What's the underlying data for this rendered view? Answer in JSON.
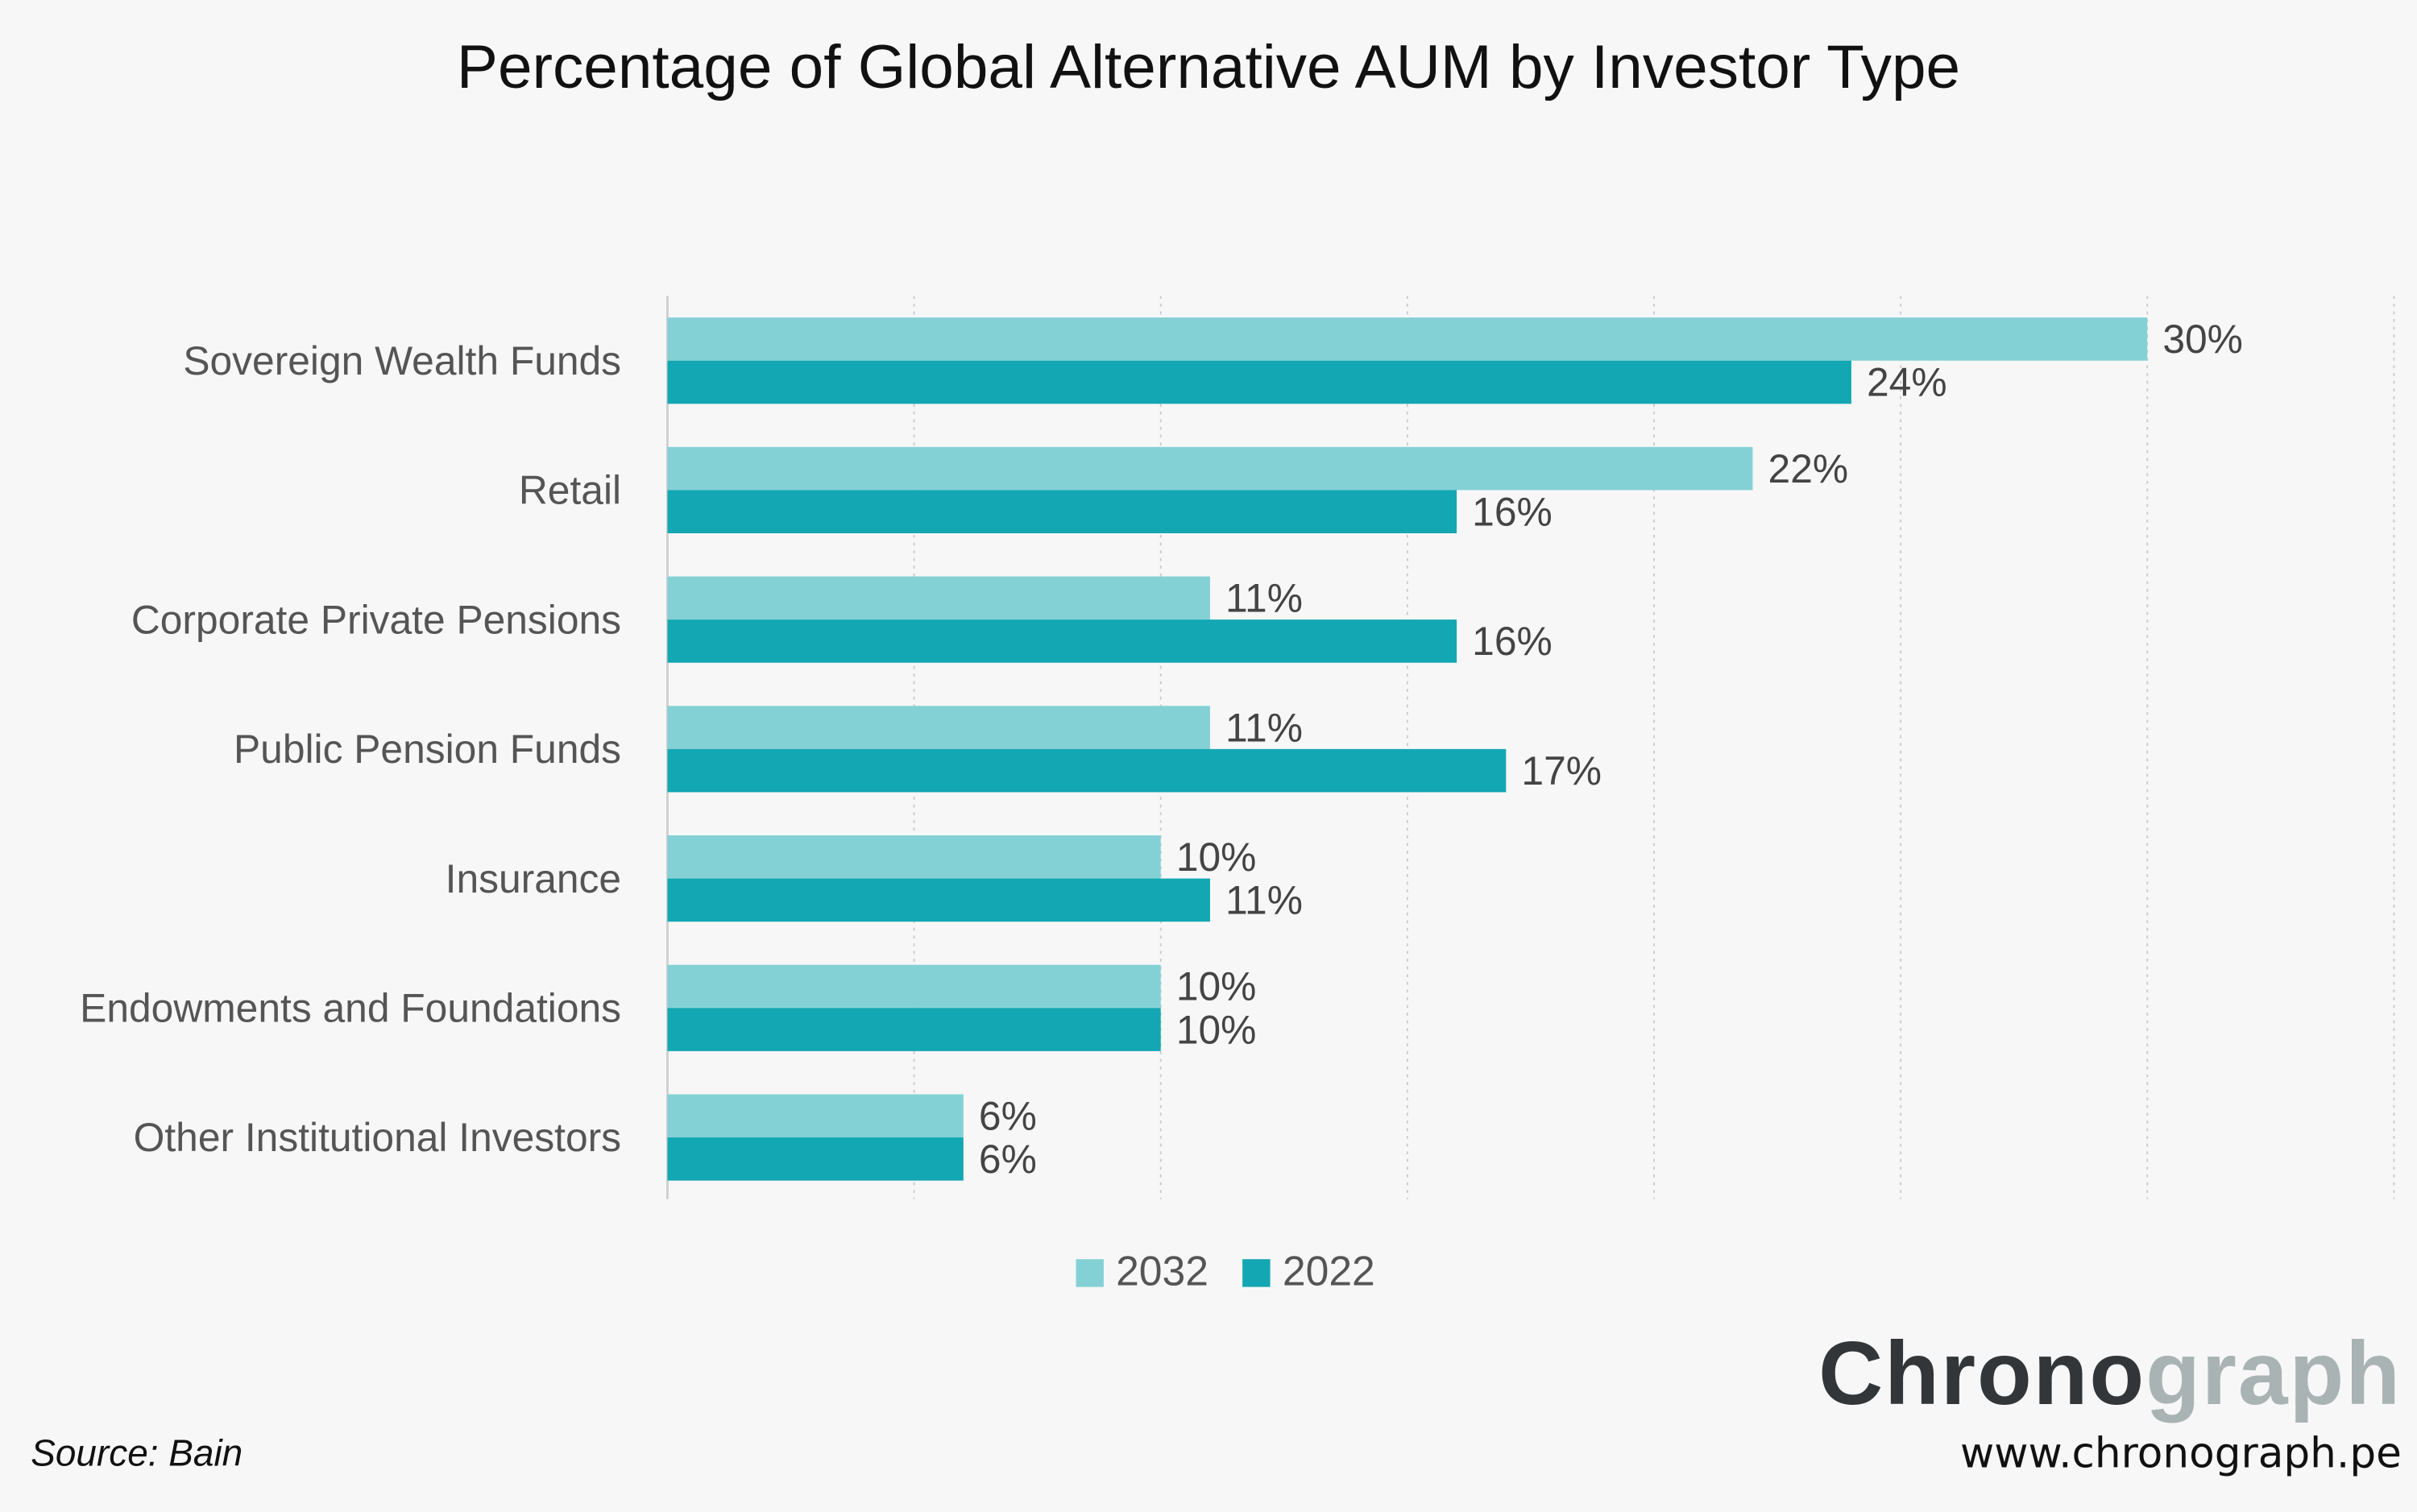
{
  "chart_data": {
    "type": "bar",
    "orientation": "horizontal",
    "title": "Percentage of Global Alternative AUM by Investor Type",
    "categories": [
      "Sovereign Wealth Funds",
      "Retail",
      "Corporate Private Pensions",
      "Public Pension Funds",
      "Insurance",
      "Endowments and Foundations",
      "Other Institutional Investors"
    ],
    "series": [
      {
        "name": "2032",
        "color": "#84d1d5",
        "values": [
          30,
          22,
          11,
          11,
          10,
          10,
          6
        ],
        "labels": [
          "30%",
          "22%",
          "11%",
          "11%",
          "10%",
          "10%",
          "6%"
        ]
      },
      {
        "name": "2022",
        "color": "#12a7b2",
        "values": [
          24,
          16,
          16,
          17,
          11,
          10,
          6
        ],
        "labels": [
          "24%",
          "16%",
          "16%",
          "17%",
          "11%",
          "10%",
          "6%"
        ]
      }
    ],
    "xlim": [
      0,
      35
    ],
    "grid": true,
    "legend_position": "bottom",
    "xlabel": "",
    "ylabel": ""
  },
  "source": "Source: Bain",
  "brand": {
    "part1": "Chrono",
    "part2": "graph",
    "url": "www.chronograph.pe",
    "color1": "#333638",
    "color2": "#aab3b3"
  }
}
